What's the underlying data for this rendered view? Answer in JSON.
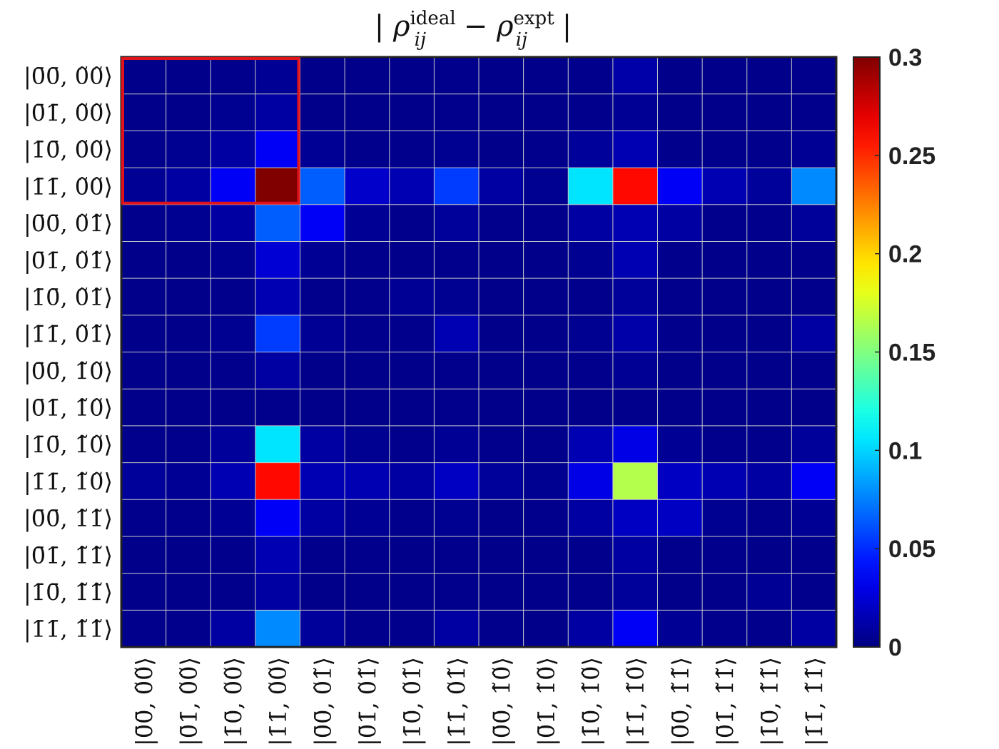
{
  "chart_data": {
    "type": "heatmap",
    "title": "| ρ_ij^ideal − ρ_ij^expt |",
    "title_parts": {
      "open": "| ",
      "rho1": "ρ",
      "sub1": "ij",
      "sup1": "ideal",
      "minus": " − ",
      "rho2": "ρ",
      "sub2": "ij",
      "sup2": "expt",
      "close": " |"
    },
    "row_labels": [
      "|0̄0̄, 0̃0̃⟩",
      "|0̄1̄, 0̃0̃⟩",
      "|1̄0̄, 0̃0̃⟩",
      "|1̄1̄, 0̃0̃⟩",
      "|0̄0̄, 0̃1̃⟩",
      "|0̄1̄, 0̃1̃⟩",
      "|1̄0̄, 0̃1̃⟩",
      "|1̄1̄, 0̃1̃⟩",
      "|0̄0̄, 1̃0̃⟩",
      "|0̄1̄, 1̃0̃⟩",
      "|1̄0̄, 1̃0̃⟩",
      "|1̄1̄, 1̃0̃⟩",
      "|0̄0̄, 1̃1̃⟩",
      "|0̄1̄, 1̃1̃⟩",
      "|1̄0̄, 1̃1̃⟩",
      "|1̄1̄, 1̃1̃⟩"
    ],
    "col_labels": [
      "|0̄0̄, 0̃0̃⟩",
      "|0̄1̄, 0̃0̃⟩",
      "|1̄0̄, 0̃0̃⟩",
      "|1̄1̄, 0̃0̃⟩",
      "|0̄0̄, 0̃1̃⟩",
      "|0̄1̄, 0̃1̃⟩",
      "|1̄0̄, 0̃1̃⟩",
      "|1̄1̄, 0̃1̃⟩",
      "|0̄0̄, 1̃0̃⟩",
      "|0̄1̄, 1̃0̃⟩",
      "|1̄0̄, 1̃0̃⟩",
      "|1̄1̄, 1̃0̃⟩",
      "|0̄0̄, 1̃1̃⟩",
      "|0̄1̄, 1̃1̃⟩",
      "|1̄0̄, 1̃1̃⟩",
      "|1̄1̄, 1̃1̃⟩"
    ],
    "values": [
      [
        0.003,
        0.003,
        0.004,
        0.006,
        0.003,
        0.003,
        0.003,
        0.004,
        0.003,
        0.003,
        0.004,
        0.012,
        0.003,
        0.003,
        0.003,
        0.004
      ],
      [
        0.003,
        0.003,
        0.005,
        0.01,
        0.003,
        0.003,
        0.003,
        0.004,
        0.003,
        0.003,
        0.004,
        0.006,
        0.003,
        0.003,
        0.003,
        0.004
      ],
      [
        0.004,
        0.005,
        0.01,
        0.035,
        0.006,
        0.004,
        0.004,
        0.005,
        0.003,
        0.004,
        0.008,
        0.015,
        0.004,
        0.004,
        0.004,
        0.006
      ],
      [
        0.006,
        0.01,
        0.035,
        0.3,
        0.065,
        0.022,
        0.015,
        0.055,
        0.01,
        0.005,
        0.105,
        0.26,
        0.035,
        0.015,
        0.008,
        0.078
      ],
      [
        0.004,
        0.005,
        0.01,
        0.065,
        0.035,
        0.006,
        0.004,
        0.008,
        0.004,
        0.004,
        0.01,
        0.015,
        0.01,
        0.004,
        0.004,
        0.008
      ],
      [
        0.003,
        0.003,
        0.005,
        0.025,
        0.006,
        0.004,
        0.003,
        0.004,
        0.003,
        0.003,
        0.005,
        0.015,
        0.004,
        0.003,
        0.003,
        0.004
      ],
      [
        0.003,
        0.003,
        0.004,
        0.015,
        0.004,
        0.004,
        0.006,
        0.005,
        0.003,
        0.003,
        0.004,
        0.008,
        0.004,
        0.003,
        0.003,
        0.004
      ],
      [
        0.003,
        0.003,
        0.005,
        0.055,
        0.006,
        0.004,
        0.004,
        0.015,
        0.003,
        0.003,
        0.005,
        0.012,
        0.004,
        0.003,
        0.003,
        0.01
      ],
      [
        0.003,
        0.003,
        0.004,
        0.01,
        0.003,
        0.003,
        0.003,
        0.004,
        0.003,
        0.003,
        0.004,
        0.006,
        0.003,
        0.003,
        0.003,
        0.004
      ],
      [
        0.003,
        0.003,
        0.003,
        0.004,
        0.003,
        0.003,
        0.003,
        0.004,
        0.003,
        0.003,
        0.003,
        0.004,
        0.003,
        0.003,
        0.003,
        0.003
      ],
      [
        0.004,
        0.004,
        0.008,
        0.105,
        0.01,
        0.005,
        0.004,
        0.006,
        0.004,
        0.004,
        0.015,
        0.03,
        0.006,
        0.004,
        0.004,
        0.008
      ],
      [
        0.008,
        0.006,
        0.015,
        0.26,
        0.015,
        0.015,
        0.01,
        0.02,
        0.008,
        0.005,
        0.03,
        0.165,
        0.02,
        0.015,
        0.01,
        0.035
      ],
      [
        0.004,
        0.004,
        0.006,
        0.035,
        0.01,
        0.006,
        0.004,
        0.005,
        0.003,
        0.004,
        0.01,
        0.02,
        0.02,
        0.005,
        0.004,
        0.006
      ],
      [
        0.003,
        0.003,
        0.004,
        0.015,
        0.004,
        0.004,
        0.003,
        0.004,
        0.003,
        0.003,
        0.004,
        0.01,
        0.004,
        0.004,
        0.003,
        0.004
      ],
      [
        0.003,
        0.003,
        0.004,
        0.01,
        0.003,
        0.003,
        0.003,
        0.004,
        0.003,
        0.003,
        0.004,
        0.008,
        0.003,
        0.003,
        0.006,
        0.004
      ],
      [
        0.004,
        0.004,
        0.01,
        0.078,
        0.008,
        0.004,
        0.004,
        0.01,
        0.004,
        0.003,
        0.01,
        0.035,
        0.006,
        0.004,
        0.004,
        0.01
      ]
    ],
    "colormap": "jet",
    "clim": [
      0,
      0.3
    ],
    "colorbar_ticks": [
      0,
      0.05,
      0.1,
      0.15,
      0.2,
      0.25,
      0.3
    ],
    "colorbar_tick_labels": [
      "0",
      "0.05",
      "0.1",
      "0.15",
      "0.2",
      "0.25",
      "0.3"
    ],
    "grid": true,
    "grid_color": "#c8c8c8",
    "highlight": {
      "rows": [
        0,
        3
      ],
      "cols": [
        0,
        3
      ],
      "color": "#e0121a"
    },
    "xlabel": "",
    "ylabel": ""
  }
}
